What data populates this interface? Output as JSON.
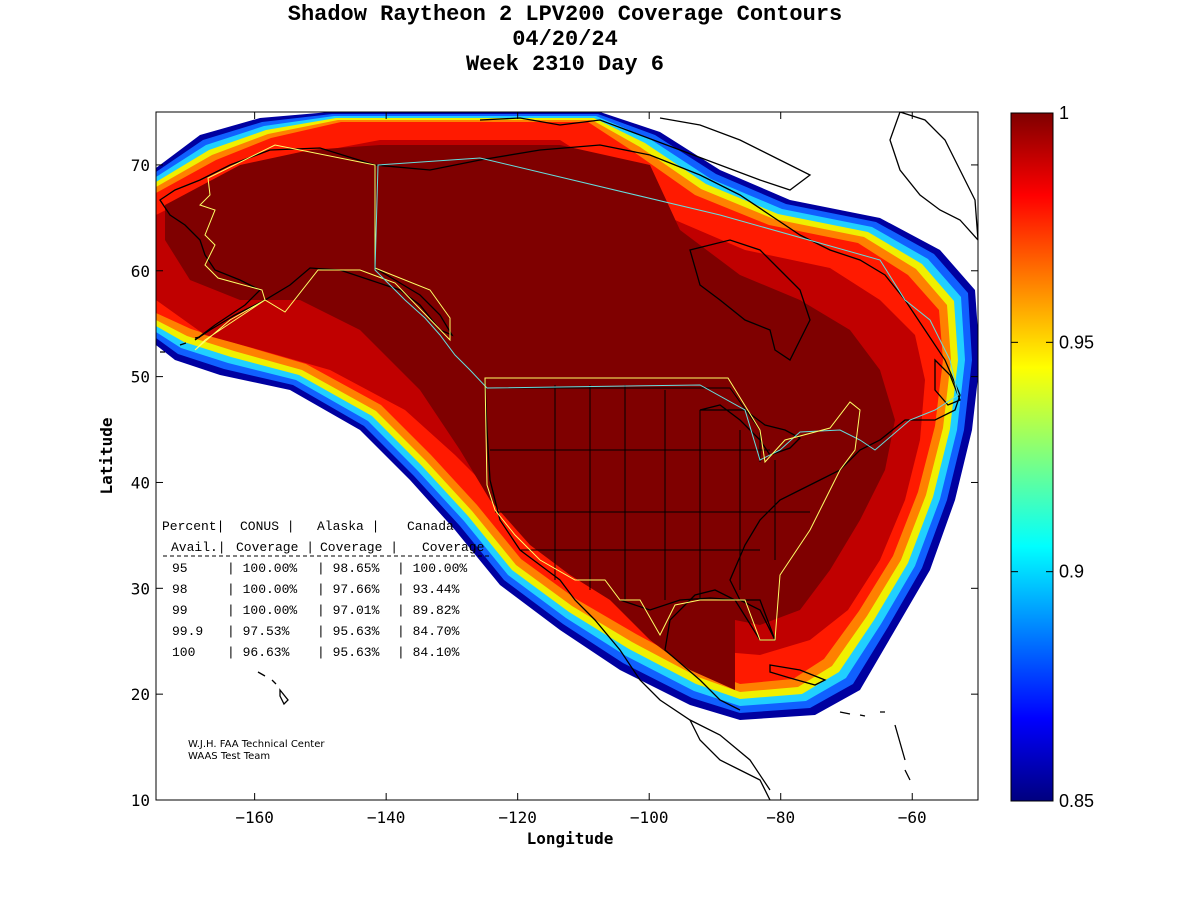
{
  "title": {
    "line1": "Shadow Raytheon 2 LPV200 Coverage Contours",
    "line2": "04/20/24",
    "line3": "Week 2310 Day 6"
  },
  "axes": {
    "xlabel": "Longitude",
    "ylabel": "Latitude",
    "xlim": [
      -175,
      -50
    ],
    "ylim": [
      10,
      75
    ],
    "xticks": [
      -160,
      -140,
      -120,
      -100,
      -80,
      -60
    ],
    "yticks": [
      10,
      20,
      30,
      40,
      50,
      60,
      70
    ]
  },
  "colorbar": {
    "colormap": "jet",
    "min": 0.85,
    "max": 1,
    "tick_values": [
      1,
      0.95,
      0.9,
      0.85
    ],
    "tick_labels": [
      "1",
      "0.95",
      "0.9",
      "0.85"
    ]
  },
  "coverage_table": {
    "header1": [
      "Percent|",
      "CONUS  |",
      "Alaska  |",
      "Canada"
    ],
    "header2": [
      "Avail.|",
      "Coverage |",
      "Coverage |",
      "Coverage"
    ],
    "rows": [
      [
        "95",
        "100.00%",
        "98.65%",
        "100.00%"
      ],
      [
        "98",
        "100.00%",
        "97.66%",
        "93.44%"
      ],
      [
        "99",
        "100.00%",
        "97.01%",
        "89.82%"
      ],
      [
        "99.9",
        "97.53%",
        "95.63%",
        "84.70%"
      ],
      [
        "100",
        "96.63%",
        "95.63%",
        "84.10%"
      ]
    ]
  },
  "credit": {
    "line1": "W.J.H. FAA Technical Center",
    "line2": "WAAS Test Team"
  },
  "colors": {
    "core": "#7f0000",
    "outline_region": "#ffff66",
    "outline_service": "#66dddd",
    "coastline": "#000000"
  }
}
